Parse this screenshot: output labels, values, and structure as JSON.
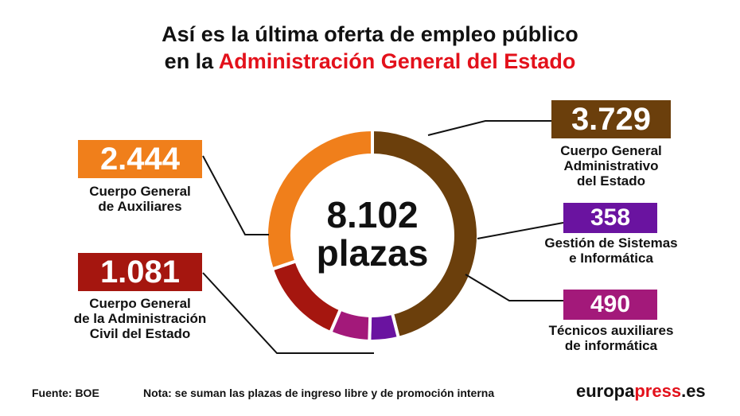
{
  "header": {
    "title_line1": "Así es la última oferta de empleo público",
    "title_line2_prefix": "en la ",
    "title_line2_accent": "Administración General del Estado"
  },
  "center": {
    "total": "8.102",
    "unit": "plazas"
  },
  "chart_data": {
    "type": "pie",
    "variant": "donut",
    "total": 8102,
    "slices": [
      {
        "label": "Cuerpo General Administrativo del Estado",
        "value": 3729,
        "display": "3.729",
        "color": "#6b3f0c"
      },
      {
        "label": "Gestión de Sistemas e Informática",
        "value": 358,
        "display": "358",
        "color": "#6a13a0"
      },
      {
        "label": "Técnicos auxiliares de informática",
        "value": 490,
        "display": "490",
        "color": "#a3197a"
      },
      {
        "label": "Cuerpo General de la Administración Civil del Estado",
        "value": 1081,
        "display": "1.081",
        "color": "#a5160f"
      },
      {
        "label": "Cuerpo General de Auxiliares",
        "value": 2444,
        "display": "2.444",
        "color": "#f07f1b"
      }
    ]
  },
  "callouts": {
    "administrativo": {
      "value": "3.729",
      "line1": "Cuerpo General",
      "line2": "Administrativo",
      "line3": "del Estado"
    },
    "sistemas": {
      "value": "358",
      "line1": "Gestión de Sistemas",
      "line2": "e Informática"
    },
    "tecnicos": {
      "value": "490",
      "line1": "Técnicos auxiliares",
      "line2": "de informática"
    },
    "civil": {
      "value": "1.081",
      "line1": "Cuerpo General",
      "line2": "de la Administración",
      "line3": "Civil del Estado"
    },
    "auxiliares": {
      "value": "2.444",
      "line1": "Cuerpo General",
      "line2": "de Auxiliares"
    }
  },
  "footer": {
    "source": "Fuente: BOE",
    "note": "Nota: se suman las plazas de ingreso libre y de promoción interna",
    "brand_prefix": "europa",
    "brand_accent": "press",
    "brand_suffix": ".es"
  }
}
